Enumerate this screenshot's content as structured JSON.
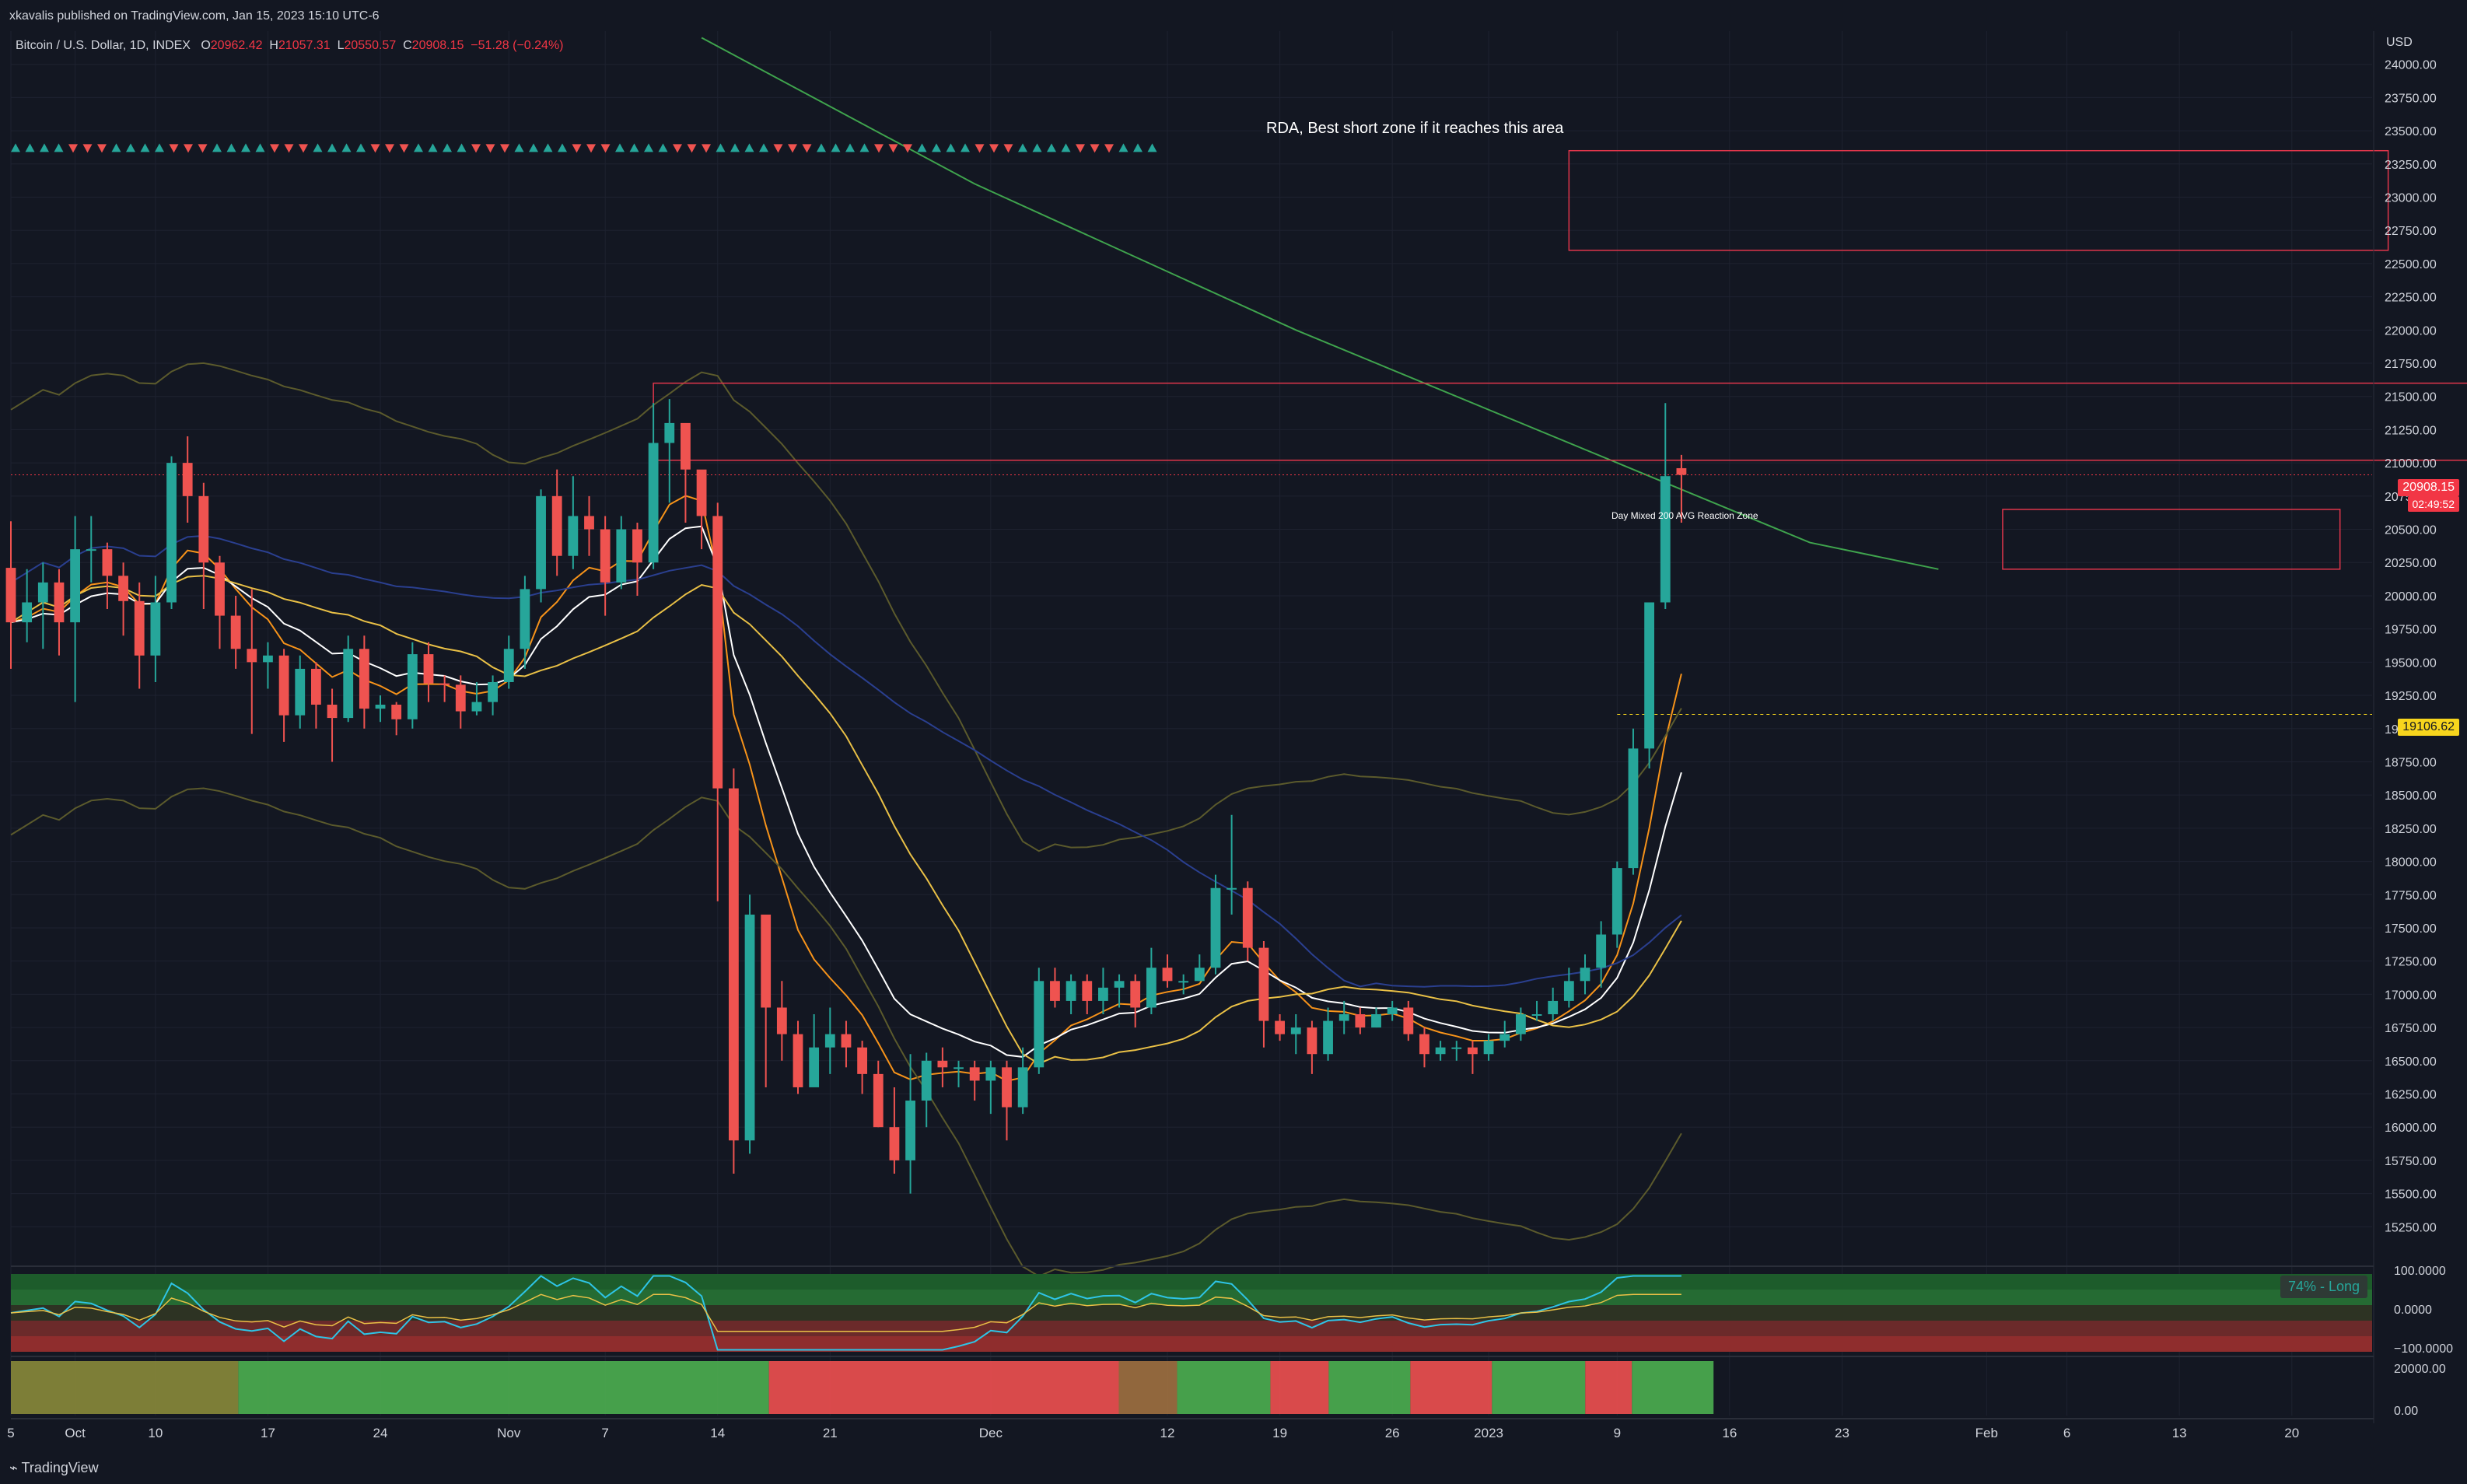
{
  "header": {
    "publisher": "xkavalis published on TradingView.com, Jan 15, 2023 15:10 UTC-6",
    "symbol": "Bitcoin / U.S. Dollar, 1D, INDEX",
    "open_label": "O",
    "open": "20962.42",
    "high_label": "H",
    "high": "21057.31",
    "low_label": "L",
    "low": "20550.57",
    "close_label": "C",
    "close": "20908.15",
    "change": "−51.28 (−0.24%)"
  },
  "currency_label": "USD",
  "annotations": {
    "short_zone": "RDA, Best short zone if it reaches this area",
    "reaction_zone": "Day Mixed 200 AVG Reaction Zone"
  },
  "price_tags": {
    "last_price": "20908.15",
    "countdown": "02:49:52",
    "level": "19106.62"
  },
  "osc_badge": "74% - Long",
  "osc_axis": [
    "100.0000",
    "0.0000",
    "−100.0000"
  ],
  "lower_axis": [
    "20000.00",
    "0.00"
  ],
  "footer": "TradingView",
  "colors": {
    "background": "#131722",
    "up": "#26a69a",
    "down": "#ef5350",
    "ma_white": "#ffffff",
    "ma_orange": "#f7931a",
    "ma_yellow": "#e9c046",
    "ma_blue": "#2a3f8f",
    "ma_green": "#3fa34d",
    "band_olive": "#5b5a2c",
    "zone_box": "#e0364b"
  },
  "chart_data": {
    "type": "candlestick",
    "title": "Bitcoin / U.S. Dollar, 1D, INDEX",
    "ylabel": "USD",
    "ylim": [
      15000,
      24250
    ],
    "y_ticks": [
      24000,
      23750,
      23500,
      23250,
      23000,
      22750,
      22500,
      22250,
      22000,
      21750,
      21500,
      21250,
      21000,
      20750,
      20500,
      20250,
      20000,
      19750,
      19500,
      19250,
      19000,
      18750,
      18500,
      18250,
      18000,
      17750,
      17500,
      17250,
      17000,
      16750,
      16500,
      16250,
      16000,
      15750,
      15500,
      15250
    ],
    "x_ticks": [
      {
        "label": "5",
        "day": 0
      },
      {
        "label": "Oct",
        "day": 4
      },
      {
        "label": "10",
        "day": 9
      },
      {
        "label": "17",
        "day": 16
      },
      {
        "label": "24",
        "day": 23
      },
      {
        "label": "Nov",
        "day": 31
      },
      {
        "label": "7",
        "day": 37
      },
      {
        "label": "14",
        "day": 44
      },
      {
        "label": "21",
        "day": 51
      },
      {
        "label": "Dec",
        "day": 61
      },
      {
        "label": "12",
        "day": 72
      },
      {
        "label": "19",
        "day": 79
      },
      {
        "label": "26",
        "day": 86
      },
      {
        "label": "2023",
        "day": 92
      },
      {
        "label": "9",
        "day": 100
      },
      {
        "label": "16",
        "day": 107
      },
      {
        "label": "23",
        "day": 114
      },
      {
        "label": "Feb",
        "day": 123
      },
      {
        "label": "6",
        "day": 128
      },
      {
        "label": "13",
        "day": 135
      },
      {
        "label": "20",
        "day": 142
      }
    ],
    "x_range_days": [
      0,
      147
    ],
    "candles": [
      [
        20210,
        19800,
        20560,
        19450
      ],
      [
        19800,
        19950,
        20200,
        19650
      ],
      [
        19950,
        20100,
        20250,
        19600
      ],
      [
        20100,
        19800,
        20200,
        19550
      ],
      [
        19800,
        20350,
        20600,
        19200
      ],
      [
        20350,
        20350,
        20600,
        20100
      ],
      [
        20350,
        20150,
        20400,
        19900
      ],
      [
        20150,
        19960,
        20250,
        19700
      ],
      [
        19960,
        19550,
        20100,
        19300
      ],
      [
        19550,
        19950,
        20150,
        19350
      ],
      [
        19950,
        21000,
        21050,
        19900
      ],
      [
        21000,
        20750,
        21200,
        20550
      ],
      [
        20750,
        20250,
        20850,
        19900
      ],
      [
        20250,
        19850,
        20300,
        19600
      ],
      [
        19850,
        19600,
        20000,
        19450
      ],
      [
        19600,
        19500,
        20050,
        18960
      ],
      [
        19500,
        19550,
        19650,
        19300
      ],
      [
        19550,
        19100,
        19600,
        18900
      ],
      [
        19100,
        19450,
        19550,
        19000
      ],
      [
        19450,
        19180,
        19500,
        19000
      ],
      [
        19180,
        19080,
        19300,
        18750
      ],
      [
        19080,
        19600,
        19700,
        19050
      ],
      [
        19600,
        19150,
        19700,
        19000
      ],
      [
        19150,
        19180,
        19250,
        19050
      ],
      [
        19180,
        19070,
        19200,
        18950
      ],
      [
        19070,
        19560,
        19650,
        19000
      ],
      [
        19560,
        19340,
        19650,
        19200
      ],
      [
        19340,
        19330,
        19400,
        19200
      ],
      [
        19330,
        19130,
        19400,
        19000
      ],
      [
        19130,
        19200,
        19350,
        19100
      ],
      [
        19200,
        19350,
        19400,
        19100
      ],
      [
        19350,
        19600,
        19700,
        19300
      ],
      [
        19600,
        20050,
        20150,
        19450
      ],
      [
        20050,
        20750,
        20800,
        19950
      ],
      [
        20750,
        20300,
        20950,
        20150
      ],
      [
        20300,
        20600,
        20900,
        20200
      ],
      [
        20600,
        20500,
        20750,
        20300
      ],
      [
        20500,
        20100,
        20600,
        19850
      ],
      [
        20100,
        20500,
        20600,
        20050
      ],
      [
        20500,
        20250,
        20550,
        20000
      ],
      [
        20250,
        21150,
        21450,
        20200
      ],
      [
        21150,
        21300,
        21480,
        20700
      ],
      [
        21300,
        20950,
        21050,
        20550
      ],
      [
        20950,
        20600,
        20850,
        20350
      ],
      [
        20600,
        18550,
        20700,
        17700
      ],
      [
        18550,
        15900,
        18700,
        15650
      ],
      [
        15900,
        17600,
        17750,
        15800
      ],
      [
        17600,
        16900,
        17150,
        16300
      ],
      [
        16900,
        16700,
        17100,
        16500
      ],
      [
        16700,
        16300,
        16800,
        16250
      ],
      [
        16300,
        16600,
        16850,
        16400
      ],
      [
        16600,
        16700,
        16900,
        16400
      ],
      [
        16700,
        16600,
        16800,
        16450
      ],
      [
        16600,
        16400,
        16650,
        16250
      ],
      [
        16400,
        16000,
        16500,
        16000
      ],
      [
        16000,
        15750,
        16300,
        15650
      ],
      [
        15750,
        16200,
        16550,
        15500
      ],
      [
        16200,
        16500,
        16560,
        16000
      ],
      [
        16500,
        16450,
        16600,
        16300
      ],
      [
        16450,
        16450,
        16500,
        16300
      ],
      [
        16450,
        16350,
        16500,
        16200
      ],
      [
        16350,
        16450,
        16500,
        16100
      ],
      [
        16450,
        16150,
        16500,
        15900
      ],
      [
        16150,
        16450,
        16600,
        16100
      ],
      [
        16450,
        17100,
        17200,
        16400
      ],
      [
        17100,
        16950,
        17200,
        16900
      ],
      [
        16950,
        17100,
        17150,
        16850
      ],
      [
        17100,
        16950,
        17150,
        16850
      ],
      [
        16950,
        17050,
        17200,
        16850
      ],
      [
        17050,
        17100,
        17150,
        16900
      ],
      [
        17100,
        16900,
        17150,
        16750
      ],
      [
        16900,
        17200,
        17350,
        16850
      ],
      [
        17200,
        17100,
        17300,
        17050
      ],
      [
        17100,
        17100,
        17150,
        17000
      ],
      [
        17100,
        17200,
        17300,
        17100
      ],
      [
        17200,
        17800,
        17900,
        17150
      ],
      [
        17800,
        17800,
        18350,
        17600
      ],
      [
        17800,
        17350,
        17850,
        17250
      ],
      [
        17350,
        16800,
        17400,
        16600
      ],
      [
        16800,
        16700,
        16850,
        16650
      ],
      [
        16700,
        16750,
        16850,
        16550
      ],
      [
        16750,
        16550,
        16800,
        16400
      ],
      [
        16550,
        16800,
        16900,
        16500
      ],
      [
        16800,
        16850,
        16950,
        16700
      ],
      [
        16850,
        16750,
        16900,
        16700
      ],
      [
        16750,
        16850,
        16900,
        16750
      ],
      [
        16850,
        16900,
        16950,
        16800
      ],
      [
        16900,
        16700,
        16950,
        16650
      ],
      [
        16700,
        16550,
        16750,
        16450
      ],
      [
        16550,
        16600,
        16650,
        16500
      ],
      [
        16600,
        16600,
        16650,
        16500
      ],
      [
        16600,
        16550,
        16650,
        16400
      ],
      [
        16550,
        16650,
        16700,
        16500
      ],
      [
        16650,
        16700,
        16800,
        16600
      ],
      [
        16700,
        16850,
        16900,
        16650
      ],
      [
        16850,
        16850,
        16950,
        16800
      ],
      [
        16850,
        16950,
        17050,
        16800
      ],
      [
        16950,
        17100,
        17200,
        16900
      ],
      [
        17100,
        17200,
        17300,
        17000
      ],
      [
        17200,
        17450,
        17550,
        17050
      ],
      [
        17450,
        17950,
        18000,
        17350
      ],
      [
        17950,
        18850,
        19000,
        17900
      ],
      [
        18850,
        19950,
        19950,
        18700
      ],
      [
        19950,
        20900,
        21450,
        19900
      ],
      [
        20960,
        20910,
        21060,
        20550
      ]
    ],
    "series": [
      {
        "name": "",
        "values": []
      }
    ],
    "zones": [
      {
        "label": "RDA, Best short zone if it reaches this area",
        "day_from": 97,
        "day_to": 148,
        "y_from": 22600,
        "y_to": 23350
      },
      {
        "label": "",
        "day_from": 40,
        "day_to": 153,
        "y_from": 21020,
        "y_to": 21600
      },
      {
        "label": "Day Mixed 200 AVG Reaction Zone",
        "day_from": 124,
        "day_to": 145,
        "y_from": 20200,
        "y_to": 20650
      }
    ],
    "oscillator": {
      "ylim": [
        -100,
        100
      ],
      "badge": "74% - Long"
    },
    "legend": "none",
    "grid": true
  }
}
